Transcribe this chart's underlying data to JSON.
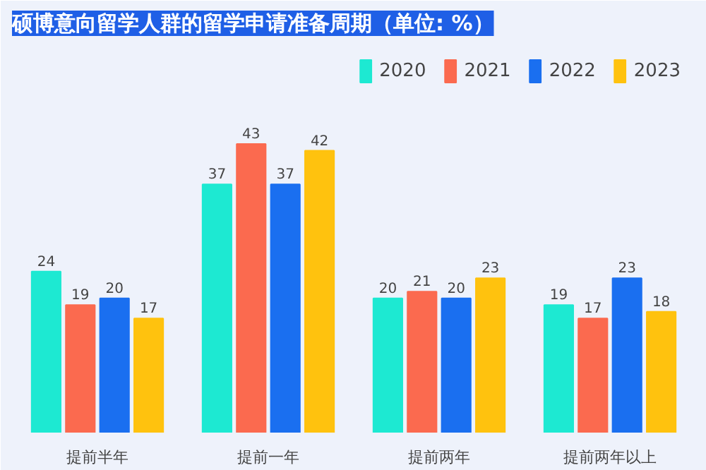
{
  "chart_data": {
    "type": "bar",
    "title": "硕博意向留学人群的留学申请准备周期（单位: %）",
    "categories": [
      "提前半年",
      "提前一年",
      "提前两年",
      "提前两年以上"
    ],
    "series": [
      {
        "name": "2020",
        "color": "#1de9d2",
        "values": [
          24,
          37,
          20,
          19
        ]
      },
      {
        "name": "2021",
        "color": "#fb6a4f",
        "values": [
          19,
          43,
          21,
          17
        ]
      },
      {
        "name": "2022",
        "color": "#1a6ff0",
        "values": [
          20,
          37,
          20,
          23
        ]
      },
      {
        "name": "2023",
        "color": "#ffc20e",
        "values": [
          17,
          42,
          23,
          18
        ]
      }
    ],
    "data_labels": true,
    "legend": "top right"
  }
}
